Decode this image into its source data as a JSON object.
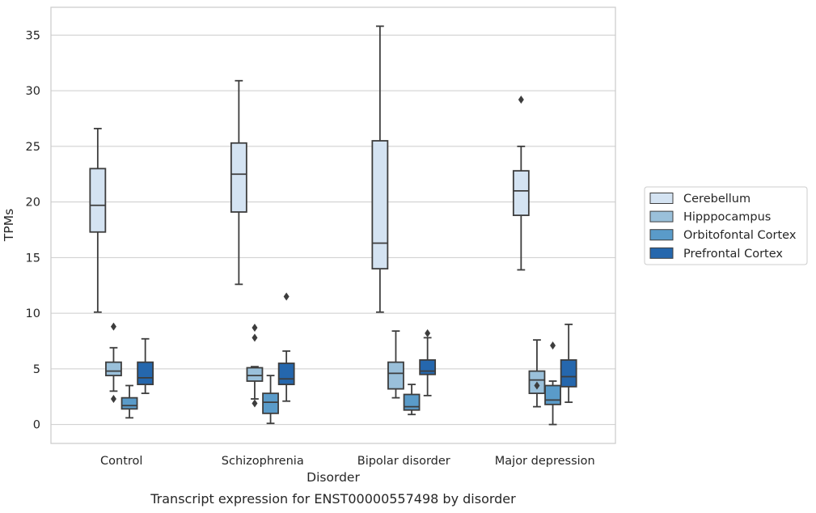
{
  "chart_data": {
    "type": "box",
    "xlabel": "Disorder",
    "ylabel": "TPMs",
    "caption": "Transcript expression for ENST00000557498 by disorder",
    "ylim": [
      -1.7,
      37.5
    ],
    "yticks": [
      0,
      5,
      10,
      15,
      20,
      25,
      30,
      35
    ],
    "grid": "horizontal",
    "legend_position": "right",
    "categories": [
      "Control",
      "Schizophrenia",
      "Bipolar disorder",
      "Major depression"
    ],
    "series": [
      {
        "name": "Cerebellum",
        "color": "#d4e3f2",
        "boxes": [
          {
            "whislo": 10.1,
            "q1": 17.3,
            "med": 19.7,
            "q3": 23.0,
            "whishi": 26.6,
            "fliers": []
          },
          {
            "whislo": 12.6,
            "q1": 19.1,
            "med": 22.5,
            "q3": 25.3,
            "whishi": 30.9,
            "fliers": []
          },
          {
            "whislo": 10.1,
            "q1": 14.0,
            "med": 16.3,
            "q3": 25.5,
            "whishi": 35.8,
            "fliers": []
          },
          {
            "whislo": 13.9,
            "q1": 18.8,
            "med": 21.0,
            "q3": 22.8,
            "whishi": 25.0,
            "fliers": [
              29.2
            ]
          }
        ]
      },
      {
        "name": "Hipppocampus",
        "color": "#9ac0da",
        "boxes": [
          {
            "whislo": 3.0,
            "q1": 4.4,
            "med": 4.8,
            "q3": 5.6,
            "whishi": 6.9,
            "fliers": [
              8.8,
              2.3
            ]
          },
          {
            "whislo": 2.3,
            "q1": 3.9,
            "med": 4.4,
            "q3": 5.1,
            "whishi": 5.2,
            "fliers": [
              8.7,
              7.8,
              1.9
            ]
          },
          {
            "whislo": 2.4,
            "q1": 3.2,
            "med": 4.6,
            "q3": 5.6,
            "whishi": 8.4,
            "fliers": []
          },
          {
            "whislo": 1.6,
            "q1": 2.8,
            "med": 4.0,
            "q3": 4.8,
            "whishi": 7.6,
            "fliers": [
              3.5
            ]
          }
        ]
      },
      {
        "name": "Orbitofontal Cortex",
        "color": "#5a9bc9",
        "boxes": [
          {
            "whislo": 0.6,
            "q1": 1.4,
            "med": 1.7,
            "q3": 2.4,
            "whishi": 3.5,
            "fliers": []
          },
          {
            "whislo": 0.1,
            "q1": 1.0,
            "med": 2.0,
            "q3": 2.8,
            "whishi": 4.4,
            "fliers": []
          },
          {
            "whislo": 0.9,
            "q1": 1.3,
            "med": 1.6,
            "q3": 2.7,
            "whishi": 3.6,
            "fliers": []
          },
          {
            "whislo": 0.0,
            "q1": 1.8,
            "med": 2.2,
            "q3": 3.5,
            "whishi": 3.9,
            "fliers": [
              7.1
            ]
          }
        ]
      },
      {
        "name": "Prefrontal Cortex",
        "color": "#2567ad",
        "boxes": [
          {
            "whislo": 2.8,
            "q1": 3.6,
            "med": 4.2,
            "q3": 5.6,
            "whishi": 7.7,
            "fliers": []
          },
          {
            "whislo": 2.1,
            "q1": 3.6,
            "med": 4.1,
            "q3": 5.5,
            "whishi": 6.6,
            "fliers": [
              11.5
            ]
          },
          {
            "whislo": 2.6,
            "q1": 4.5,
            "med": 4.8,
            "q3": 5.8,
            "whishi": 7.8,
            "fliers": [
              8.2
            ]
          },
          {
            "whislo": 2.0,
            "q1": 3.4,
            "med": 4.3,
            "q3": 5.8,
            "whishi": 9.0,
            "fliers": []
          }
        ]
      }
    ]
  }
}
